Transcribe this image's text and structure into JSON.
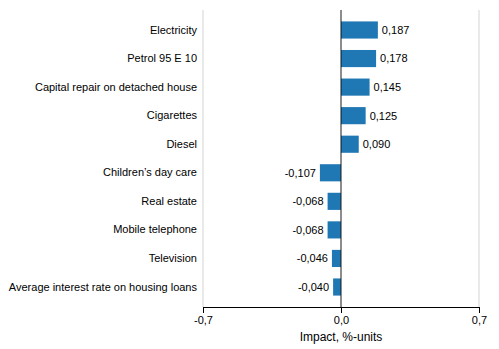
{
  "chart_data": {
    "type": "bar",
    "orientation": "horizontal",
    "categories": [
      "Average interest rate on housing loans",
      "Television",
      "Mobile telephone",
      "Real estate",
      "Children’s day care",
      "Diesel",
      "Cigarettes",
      "Capital repair on detached house",
      "Petrol 95 E 10",
      "Electricity"
    ],
    "values": [
      -0.04,
      -0.046,
      -0.068,
      -0.068,
      -0.107,
      0.09,
      0.125,
      0.145,
      0.178,
      0.187
    ],
    "value_labels": [
      "-0,040",
      "-0,046",
      "-0,068",
      "-0,068",
      "-0,107",
      "0,090",
      "0,125",
      "0,145",
      "0,178",
      "0,187"
    ],
    "data_labels": true,
    "color": "#1F77B4",
    "xlabel": "Impact, %-units",
    "xlim": [
      -0.7,
      0.7
    ],
    "xticks": [
      {
        "value": -0.7,
        "label": "-0,7"
      },
      {
        "value": 0.0,
        "label": "0,0"
      },
      {
        "value": 0.7,
        "label": "0,7"
      }
    ],
    "grid": true
  }
}
